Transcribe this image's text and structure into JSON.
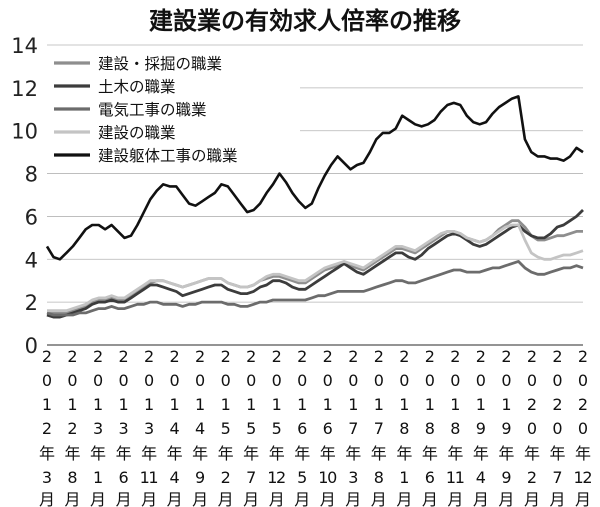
{
  "chart_data": {
    "type": "line",
    "title": "建設業の有効求人倍率の推移",
    "xlabel": "",
    "ylabel": "",
    "ylim": [
      0,
      14
    ],
    "yticks": [
      "0",
      "2",
      "4",
      "6",
      "8",
      "10",
      "12",
      "14"
    ],
    "grid": true,
    "legend_position": "top-left",
    "xtick_labels": [
      [
        "2",
        "0",
        "1",
        "2",
        "年",
        "3",
        "月"
      ],
      [
        "2",
        "0",
        "1",
        "2",
        "年",
        "8",
        "月"
      ],
      [
        "2",
        "0",
        "1",
        "3",
        "年",
        "1",
        "月"
      ],
      [
        "2",
        "0",
        "1",
        "3",
        "年",
        "6",
        "月"
      ],
      [
        "2",
        "0",
        "1",
        "3",
        "年",
        "11",
        "月"
      ],
      [
        "2",
        "0",
        "1",
        "4",
        "年",
        "4",
        "月"
      ],
      [
        "2",
        "0",
        "1",
        "4",
        "年",
        "9",
        "月"
      ],
      [
        "2",
        "0",
        "1",
        "5",
        "年",
        "2",
        "月"
      ],
      [
        "2",
        "0",
        "1",
        "5",
        "年",
        "7",
        "月"
      ],
      [
        "2",
        "0",
        "1",
        "5",
        "年",
        "12",
        "月"
      ],
      [
        "2",
        "0",
        "1",
        "6",
        "年",
        "5",
        "月"
      ],
      [
        "2",
        "0",
        "1",
        "6",
        "年",
        "10",
        "月"
      ],
      [
        "2",
        "0",
        "1",
        "7",
        "年",
        "3",
        "月"
      ],
      [
        "2",
        "0",
        "1",
        "7",
        "年",
        "8",
        "月"
      ],
      [
        "2",
        "0",
        "1",
        "8",
        "年",
        "1",
        "月"
      ],
      [
        "2",
        "0",
        "1",
        "8",
        "年",
        "6",
        "月"
      ],
      [
        "2",
        "0",
        "1",
        "8",
        "年",
        "11",
        "月"
      ],
      [
        "2",
        "0",
        "1",
        "9",
        "年",
        "4",
        "月"
      ],
      [
        "2",
        "0",
        "1",
        "9",
        "年",
        "9",
        "月"
      ],
      [
        "2",
        "0",
        "2",
        "0",
        "年",
        "2",
        "月"
      ],
      [
        "2",
        "0",
        "2",
        "0",
        "年",
        "7",
        "月"
      ],
      [
        "2",
        "0",
        "2",
        "0",
        "年",
        "12",
        "月"
      ]
    ],
    "x_start": "2012-03",
    "x_end": "2020-12",
    "series": [
      {
        "name": "建設・採掘の職業",
        "color": "#8e8e8e",
        "values": [
          [
            1.5,
            1.5,
            1.5,
            1.5,
            1.6,
            1.7,
            1.8,
            2.0,
            2.1,
            2.1,
            2.2,
            2.1,
            2.1,
            2.3,
            2.5,
            2.7,
            2.9,
            3.0,
            3.0,
            2.9,
            2.8,
            2.7,
            2.8,
            2.9,
            3.0,
            3.1,
            3.1,
            3.1,
            2.9,
            2.8,
            2.7,
            2.7,
            2.8,
            3.0,
            3.1,
            3.2,
            3.2,
            3.1,
            3.0,
            2.9,
            2.9,
            3.1,
            3.3,
            3.5,
            3.6,
            3.7,
            3.8,
            3.7,
            3.6,
            3.5,
            3.7,
            3.9,
            4.1,
            4.3,
            4.5,
            4.5,
            4.4,
            4.3,
            4.5,
            4.7,
            4.9,
            5.1,
            5.3,
            5.3,
            5.2,
            5.0,
            4.9,
            4.8,
            4.9,
            5.1,
            5.4,
            5.6,
            5.8,
            5.8,
            5.5,
            5.1,
            4.9,
            4.9,
            5.0,
            5.1,
            5.1,
            5.2,
            5.3,
            5.3
          ]
        ]
      },
      {
        "name": "土木の職業",
        "color": "#3c3c3c",
        "values": [
          [
            1.4,
            1.3,
            1.3,
            1.4,
            1.5,
            1.6,
            1.7,
            1.9,
            2.0,
            2.0,
            2.1,
            2.0,
            2.0,
            2.2,
            2.4,
            2.6,
            2.8,
            2.8,
            2.7,
            2.6,
            2.5,
            2.3,
            2.4,
            2.5,
            2.6,
            2.7,
            2.8,
            2.8,
            2.6,
            2.5,
            2.4,
            2.4,
            2.5,
            2.7,
            2.8,
            3.0,
            3.0,
            2.9,
            2.7,
            2.6,
            2.6,
            2.8,
            3.0,
            3.2,
            3.4,
            3.6,
            3.8,
            3.6,
            3.4,
            3.3,
            3.5,
            3.7,
            3.9,
            4.1,
            4.3,
            4.3,
            4.1,
            4.0,
            4.2,
            4.5,
            4.7,
            4.9,
            5.1,
            5.2,
            5.1,
            4.9,
            4.7,
            4.6,
            4.7,
            4.9,
            5.1,
            5.3,
            5.5,
            5.6,
            5.3,
            5.1,
            5.0,
            5.0,
            5.2,
            5.5,
            5.6,
            5.8,
            6.0,
            6.3
          ]
        ]
      },
      {
        "name": "電気工事の職業",
        "color": "#6c6c6c",
        "values": [
          [
            1.5,
            1.4,
            1.4,
            1.4,
            1.4,
            1.5,
            1.5,
            1.6,
            1.7,
            1.7,
            1.8,
            1.7,
            1.7,
            1.8,
            1.9,
            1.9,
            2.0,
            2.0,
            1.9,
            1.9,
            1.9,
            1.8,
            1.9,
            1.9,
            2.0,
            2.0,
            2.0,
            2.0,
            1.9,
            1.9,
            1.8,
            1.8,
            1.9,
            2.0,
            2.0,
            2.1,
            2.1,
            2.1,
            2.1,
            2.1,
            2.1,
            2.2,
            2.3,
            2.3,
            2.4,
            2.5,
            2.5,
            2.5,
            2.5,
            2.5,
            2.6,
            2.7,
            2.8,
            2.9,
            3.0,
            3.0,
            2.9,
            2.9,
            3.0,
            3.1,
            3.2,
            3.3,
            3.4,
            3.5,
            3.5,
            3.4,
            3.4,
            3.4,
            3.5,
            3.6,
            3.6,
            3.7,
            3.8,
            3.9,
            3.6,
            3.4,
            3.3,
            3.3,
            3.4,
            3.5,
            3.6,
            3.6,
            3.7,
            3.6
          ]
        ]
      },
      {
        "name": "建設の職業",
        "color": "#c4c4c4",
        "values": [
          [
            1.6,
            1.6,
            1.6,
            1.6,
            1.7,
            1.8,
            1.9,
            2.1,
            2.2,
            2.2,
            2.3,
            2.2,
            2.2,
            2.4,
            2.6,
            2.8,
            3.0,
            3.0,
            3.0,
            2.9,
            2.8,
            2.7,
            2.8,
            2.9,
            3.0,
            3.1,
            3.1,
            3.1,
            2.9,
            2.8,
            2.7,
            2.7,
            2.8,
            3.0,
            3.2,
            3.3,
            3.3,
            3.2,
            3.1,
            3.0,
            3.0,
            3.2,
            3.4,
            3.6,
            3.7,
            3.8,
            3.9,
            3.8,
            3.7,
            3.6,
            3.8,
            4.0,
            4.2,
            4.4,
            4.6,
            4.6,
            4.5,
            4.4,
            4.6,
            4.8,
            5.0,
            5.2,
            5.3,
            5.3,
            5.2,
            5.0,
            4.9,
            4.8,
            4.9,
            5.1,
            5.3,
            5.5,
            5.6,
            5.6,
            4.9,
            4.3,
            4.1,
            4.0,
            4.0,
            4.1,
            4.2,
            4.2,
            4.3,
            4.4
          ]
        ]
      },
      {
        "name": "建設躯体工事の職業",
        "color": "#111111",
        "values": [
          [
            4.6,
            4.1,
            4.0,
            4.3,
            4.6,
            5.0,
            5.4,
            5.6,
            5.6,
            5.4,
            5.6,
            5.3,
            5.0,
            5.1,
            5.6,
            6.2,
            6.8,
            7.2,
            7.5,
            7.4,
            7.4,
            7.0,
            6.6,
            6.5,
            6.7,
            6.9,
            7.1,
            7.5,
            7.4,
            7.0,
            6.6,
            6.2,
            6.3,
            6.6,
            7.1,
            7.5,
            8.0,
            7.6,
            7.1,
            6.7,
            6.4,
            6.6,
            7.3,
            7.9,
            8.4,
            8.8,
            8.5,
            8.2,
            8.4,
            8.5,
            9.0,
            9.6,
            9.9,
            9.9,
            10.1,
            10.7,
            10.5,
            10.3,
            10.2,
            10.3,
            10.5,
            10.9,
            11.2,
            11.3,
            11.2,
            10.7,
            10.4,
            10.3,
            10.4,
            10.8,
            11.1,
            11.3,
            11.5,
            11.6,
            9.6,
            9.0,
            8.8,
            8.8,
            8.7,
            8.7,
            8.6,
            8.8,
            9.2,
            9.0
          ]
        ]
      }
    ]
  }
}
